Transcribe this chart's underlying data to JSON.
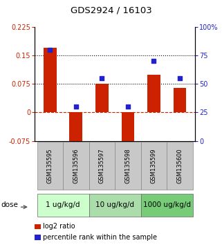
{
  "title": "GDS2924 / 16103",
  "samples": [
    "GSM135595",
    "GSM135596",
    "GSM135597",
    "GSM135598",
    "GSM135599",
    "GSM135600"
  ],
  "log2_ratio": [
    0.17,
    -0.095,
    0.075,
    -0.095,
    0.1,
    0.065
  ],
  "percentile_rank": [
    80,
    30,
    55,
    30,
    70,
    55
  ],
  "left_ylim": [
    -0.075,
    0.225
  ],
  "right_ylim": [
    0,
    100
  ],
  "left_yticks": [
    -0.075,
    0,
    0.075,
    0.15,
    0.225
  ],
  "left_yticklabels": [
    "-0.075",
    "0",
    "0.075",
    "0.15",
    "0.225"
  ],
  "right_yticks": [
    0,
    25,
    50,
    75,
    100
  ],
  "right_yticklabels": [
    "0",
    "25",
    "50",
    "75",
    "100%"
  ],
  "hlines_dotted": [
    0.075,
    0.15
  ],
  "hline_dashed_red": 0,
  "bar_color": "#cc2200",
  "dot_color": "#2222cc",
  "dose_groups": [
    {
      "label": "1 ug/kg/d",
      "indices": [
        0,
        1
      ],
      "color": "#ccffcc"
    },
    {
      "label": "10 ug/kg/d",
      "indices": [
        2,
        3
      ],
      "color": "#aaddaa"
    },
    {
      "label": "1000 ug/kg/d",
      "indices": [
        4,
        5
      ],
      "color": "#77cc77"
    }
  ],
  "dose_label": "dose",
  "legend_bar_label": "log2 ratio",
  "legend_dot_label": "percentile rank within the sample",
  "bar_width": 0.5,
  "title_fontsize": 9.5,
  "tick_fontsize": 7,
  "sample_fontsize": 6,
  "dose_fontsize": 7.5,
  "legend_fontsize": 7,
  "sample_box_color": "#c8c8c8",
  "sample_box_edge": "#888888"
}
